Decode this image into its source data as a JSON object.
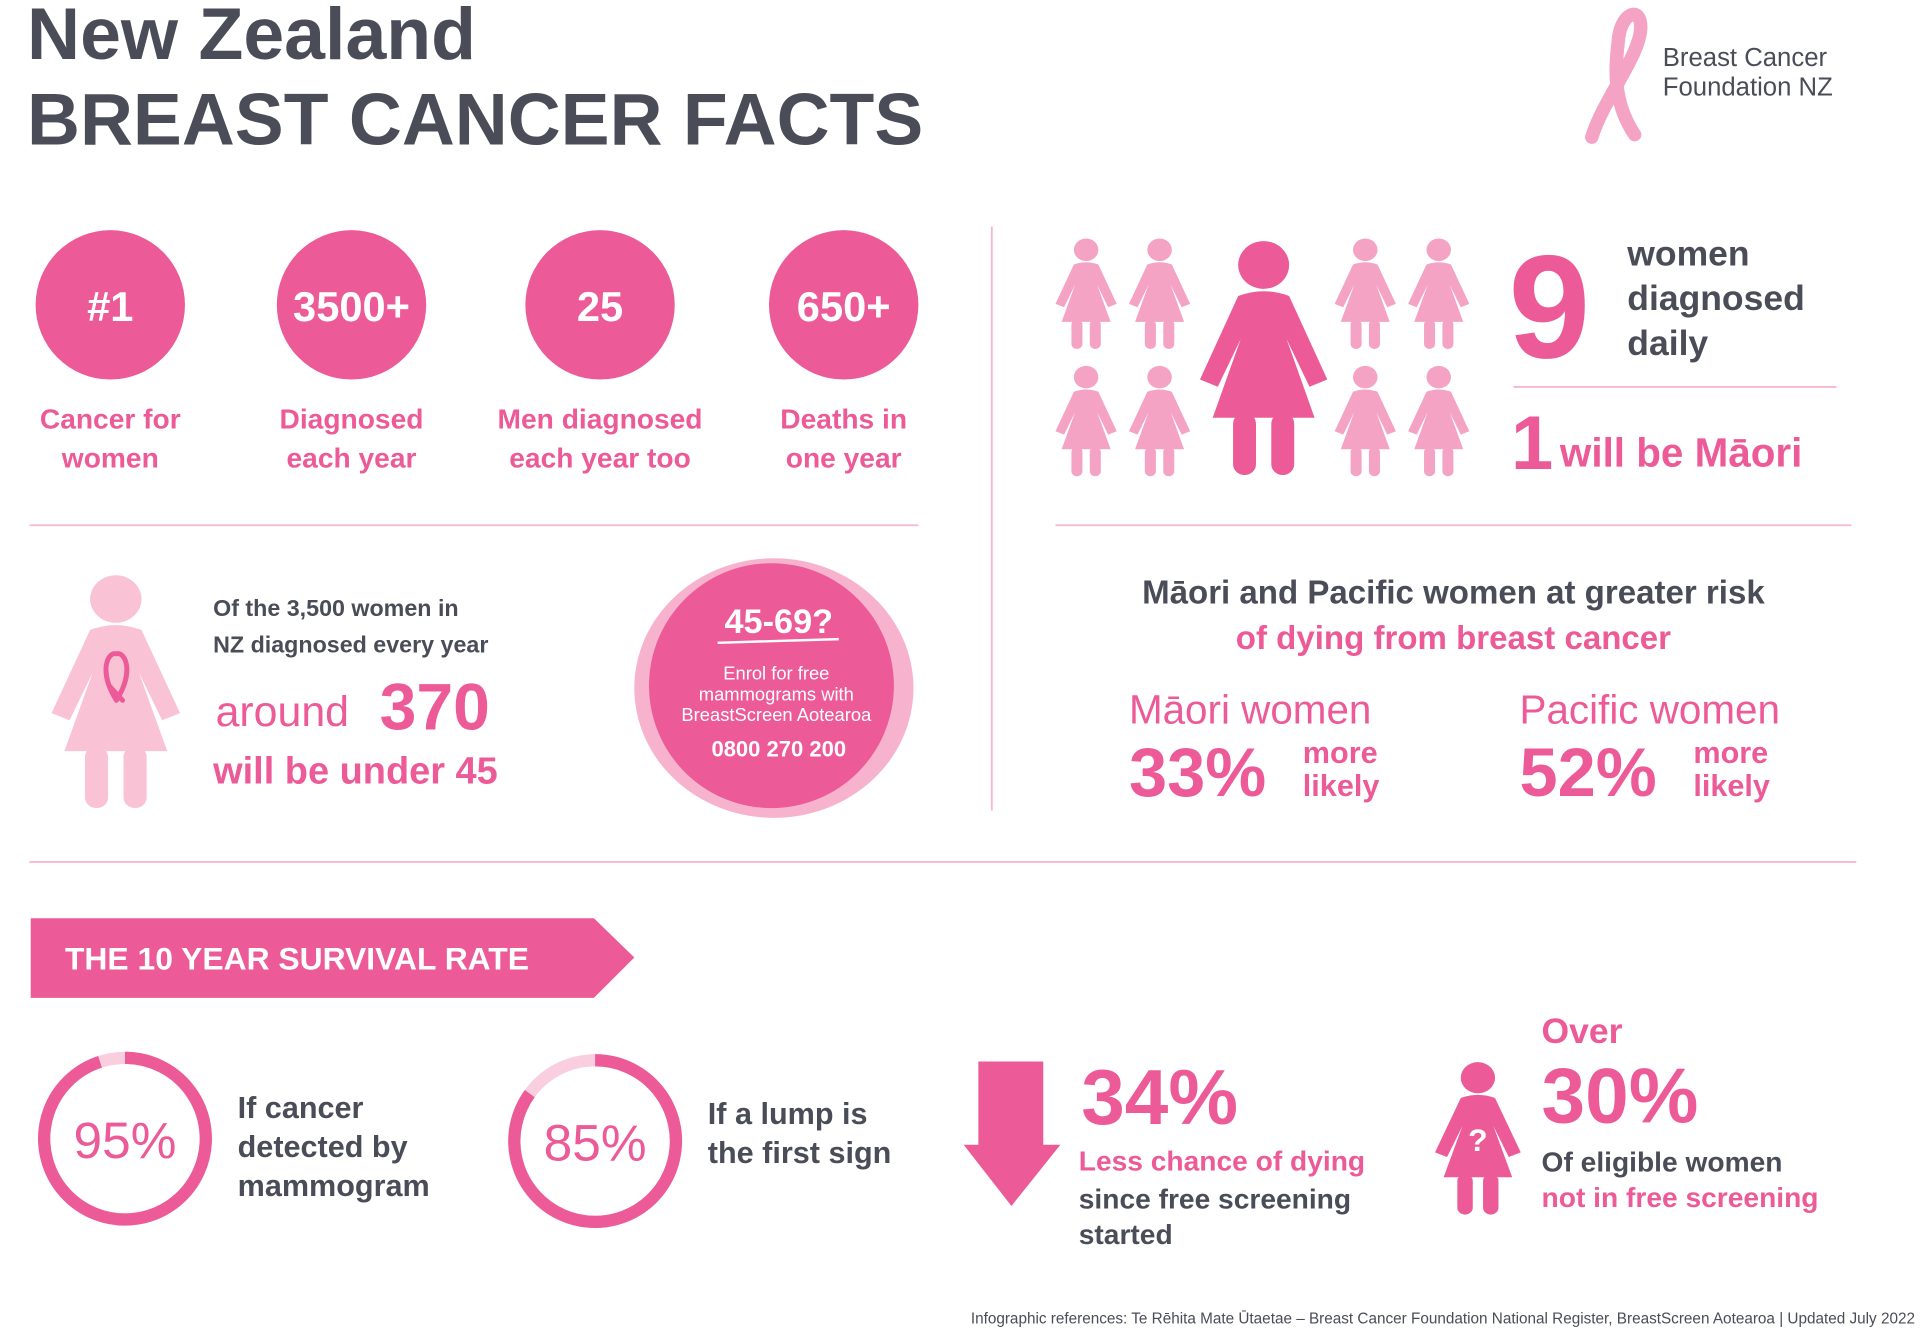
{
  "header": {
    "title_line1": "New Zealand",
    "title_line2": "BREAST CANCER FACTS",
    "logo_line1": "Breast Cancer",
    "logo_line2": "Foundation NZ"
  },
  "stats": [
    {
      "value": "#1",
      "label_lines": [
        "Cancer for",
        "women"
      ]
    },
    {
      "value": "3500+",
      "label_lines": [
        "Diagnosed",
        "each year"
      ]
    },
    {
      "value": "25",
      "label_lines": [
        "Men diagnosed",
        "each year too"
      ]
    },
    {
      "value": "650+",
      "label_lines": [
        "Deaths in",
        "one year"
      ]
    }
  ],
  "daily": {
    "number": "9",
    "text_lines": [
      "women",
      "diagnosed",
      "daily"
    ],
    "maori_number": "1",
    "maori_text": "will be Māori"
  },
  "under45": {
    "lines": [
      "Of the 3,500 women in",
      "NZ diagnosed every year"
    ],
    "around": "around",
    "number": "370",
    "tail": "will be under 45"
  },
  "screening_badge": {
    "title": "45-69?",
    "lines": [
      "Enrol for free",
      "mammograms with",
      "BreastScreen Aotearoa"
    ],
    "phone": "0800 270 200"
  },
  "risk": {
    "heading": "Māori and Pacific women at greater risk",
    "subheading": "of dying from breast cancer",
    "groups": [
      {
        "name": "Māori women",
        "value": "33%",
        "more": "more",
        "likely": "likely"
      },
      {
        "name": "Pacific women",
        "value": "52%",
        "more": "more",
        "likely": "likely"
      }
    ]
  },
  "survival": {
    "banner": "THE 10 YEAR SURVIVAL RATE",
    "rates": [
      {
        "percent": 95,
        "label": "95%",
        "lines": [
          "If cancer",
          "detected by",
          "mammogram"
        ]
      },
      {
        "percent": 85,
        "label": "85%",
        "lines": [
          "If a lump is",
          "the first sign"
        ]
      }
    ]
  },
  "screening_impact": {
    "value": "34%",
    "highlight": "Less chance of dying",
    "lines": [
      "since free screening",
      "started"
    ]
  },
  "not_screened": {
    "prefix": "Over",
    "value": "30%",
    "line1": "Of eligible women",
    "line2": "not in free screening"
  },
  "footer": "Infographic references: Te Rēhita Mate Ūtaetae – Breast Cancer Foundation National Register, BreastScreen Aotearoa  |  Updated July 2022"
}
